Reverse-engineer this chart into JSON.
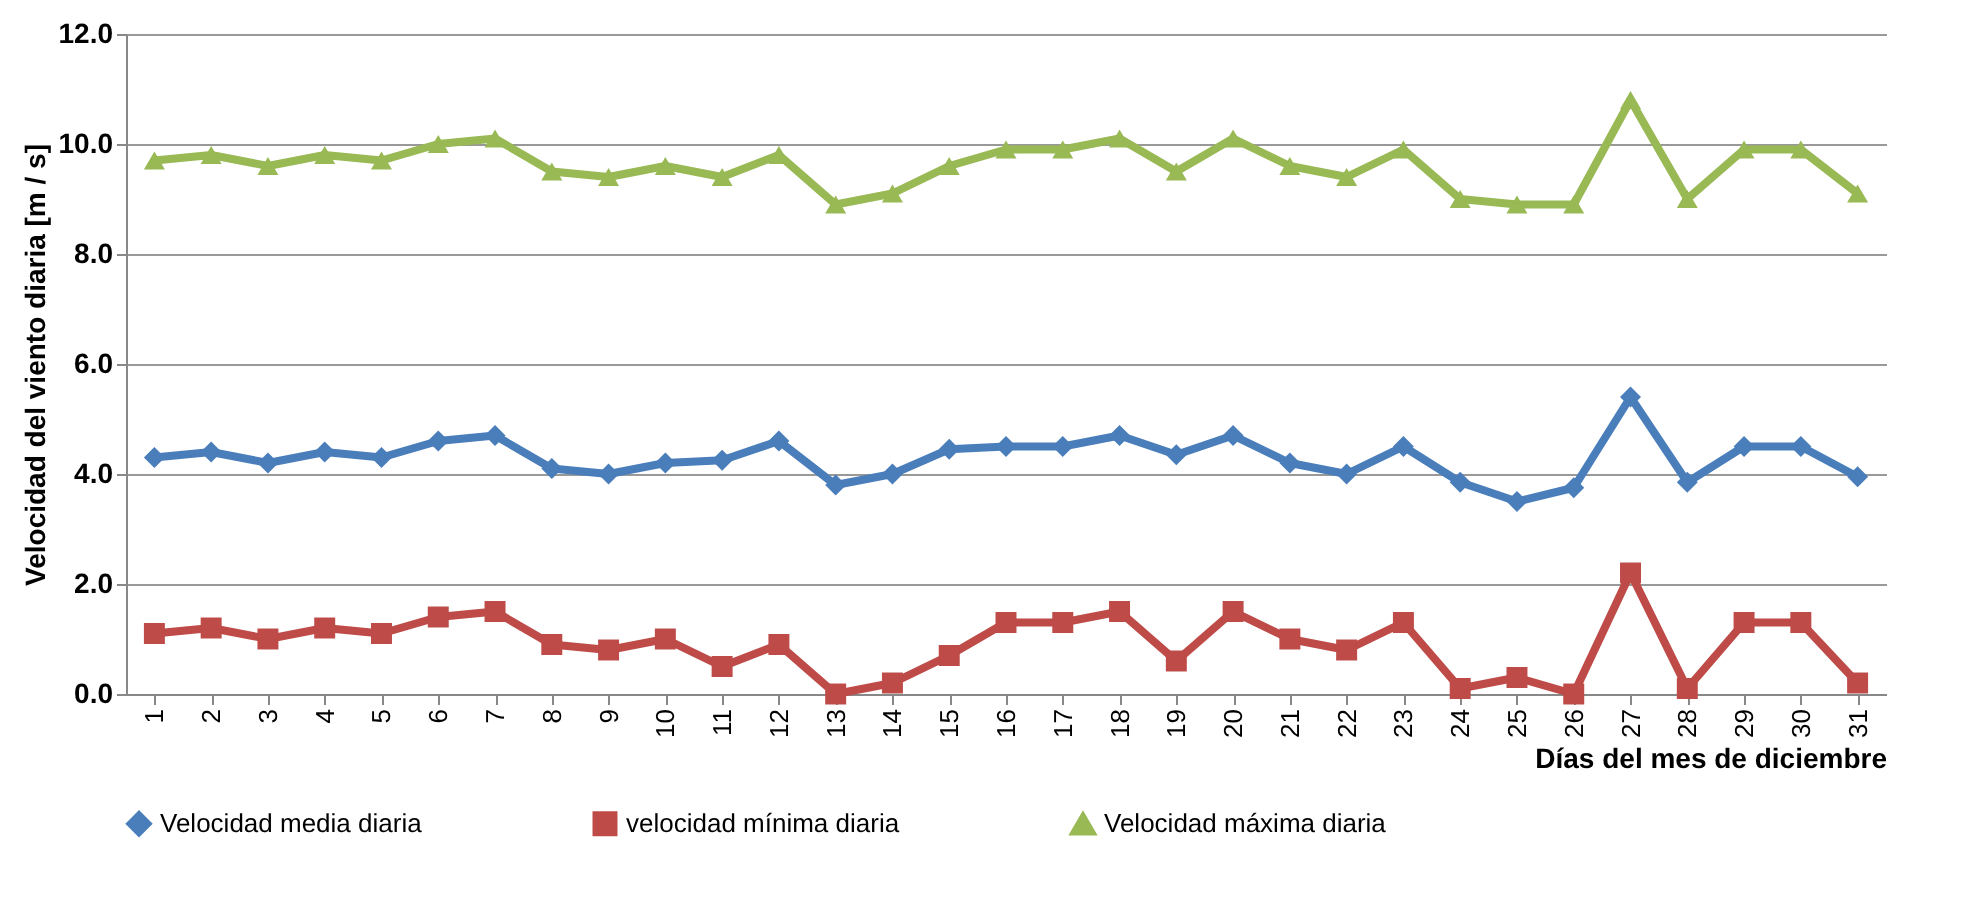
{
  "chart_data": {
    "type": "line",
    "xlabel": "Días del mes de diciembre",
    "ylabel": "Velocidad del viento diaria  [m / s]",
    "categories": [
      "1",
      "2",
      "3",
      "4",
      "5",
      "6",
      "7",
      "8",
      "9",
      "10",
      "11",
      "12",
      "13",
      "14",
      "15",
      "16",
      "17",
      "18",
      "19",
      "20",
      "21",
      "22",
      "23",
      "24",
      "25",
      "26",
      "27",
      "28",
      "29",
      "30",
      "31"
    ],
    "ylim": [
      0,
      12
    ],
    "yticks": [
      {
        "value": 0,
        "label": "0.0"
      },
      {
        "value": 2,
        "label": "2.0"
      },
      {
        "value": 4,
        "label": "4.0"
      },
      {
        "value": 6,
        "label": "6.0"
      },
      {
        "value": 8,
        "label": "8.0"
      },
      {
        "value": 10,
        "label": "10.0"
      },
      {
        "value": 12,
        "label": "12.0"
      }
    ],
    "grid": "y",
    "legend": "bottom",
    "line_style": "solid",
    "series": [
      {
        "name": "Velocidad media diaria",
        "color": "#4a7ebb",
        "marker": "diamond",
        "values": [
          4.3,
          4.4,
          4.2,
          4.4,
          4.3,
          4.6,
          4.7,
          4.1,
          4.0,
          4.2,
          4.25,
          4.6,
          3.8,
          4.0,
          4.45,
          4.5,
          4.5,
          4.7,
          4.35,
          4.7,
          4.2,
          4.0,
          4.5,
          3.85,
          3.5,
          3.75,
          5.4,
          3.85,
          4.5,
          4.5,
          3.95
        ]
      },
      {
        "name": "velocidad mínima diaria",
        "color": "#be4b48",
        "marker": "square",
        "values": [
          1.1,
          1.2,
          1.0,
          1.2,
          1.1,
          1.4,
          1.5,
          0.9,
          0.8,
          1.0,
          0.5,
          0.9,
          0.0,
          0.2,
          0.7,
          1.3,
          1.3,
          1.5,
          0.6,
          1.5,
          1.0,
          0.8,
          1.3,
          0.1,
          0.3,
          0.0,
          2.2,
          0.1,
          1.3,
          1.3,
          0.2
        ]
      },
      {
        "name": "Velocidad máxima diaria",
        "color": "#98b954",
        "marker": "triangle",
        "values": [
          9.7,
          9.8,
          9.6,
          9.8,
          9.7,
          10.0,
          10.1,
          9.5,
          9.4,
          9.6,
          9.4,
          9.8,
          8.9,
          9.1,
          9.6,
          9.9,
          9.9,
          10.1,
          9.5,
          10.1,
          9.6,
          9.4,
          9.9,
          9.0,
          8.9,
          8.9,
          10.8,
          9.0,
          9.9,
          9.9,
          9.1
        ]
      }
    ]
  }
}
